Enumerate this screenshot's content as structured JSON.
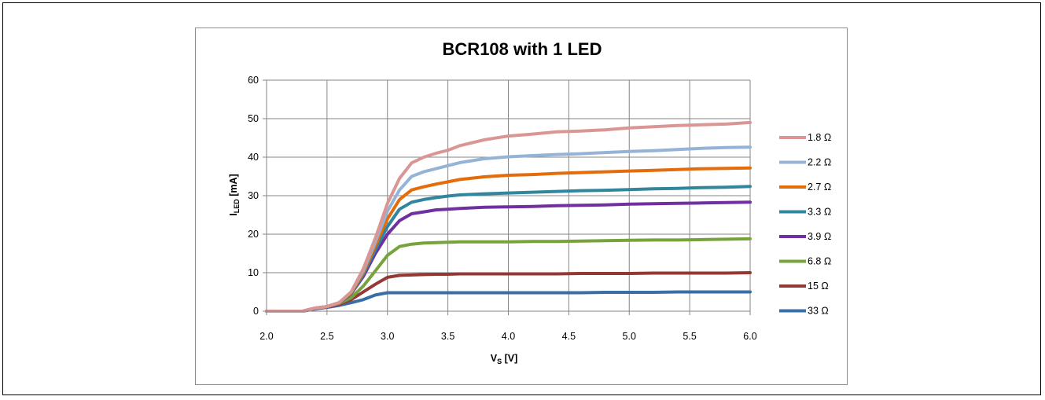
{
  "chart_data": {
    "type": "line",
    "title": "BCR108 with 1 LED",
    "ylabel_main": "I",
    "ylabel_sub": "LED",
    "ylabel_unit": " [mA]",
    "xlabel_main": "V",
    "xlabel_sub": "S",
    "xlabel_unit": " [V]",
    "xlim": [
      2.0,
      6.0
    ],
    "ylim": [
      0,
      60
    ],
    "x_ticks": [
      "2.0",
      "2.5",
      "3.0",
      "3.5",
      "4.0",
      "4.5",
      "5.0",
      "5.5",
      "6.0"
    ],
    "y_ticks": [
      "0",
      "10",
      "20",
      "30",
      "40",
      "50",
      "60"
    ],
    "grid": true,
    "legend_position": "right",
    "x": [
      2.0,
      2.3,
      2.4,
      2.5,
      2.6,
      2.7,
      2.8,
      2.9,
      3.0,
      3.1,
      3.2,
      3.3,
      3.4,
      3.5,
      3.6,
      3.8,
      4.0,
      4.2,
      4.4,
      4.6,
      4.8,
      5.0,
      5.2,
      5.4,
      5.6,
      5.8,
      6.0
    ],
    "series": [
      {
        "name": "1.8 Ω",
        "color": "#d99694",
        "values": [
          0,
          0,
          0.8,
          1.2,
          2.2,
          5,
          11,
          19,
          28,
          34.5,
          38.5,
          40,
          41,
          41.8,
          43,
          44.5,
          45.5,
          46,
          46.6,
          46.8,
          47.1,
          47.6,
          47.9,
          48.2,
          48.4,
          48.6,
          49
        ]
      },
      {
        "name": "2.2 Ω",
        "color": "#95b3d7",
        "values": [
          0,
          0,
          0.8,
          1.2,
          2.2,
          5,
          10.5,
          18,
          26,
          31.5,
          35,
          36.2,
          37,
          37.8,
          38.6,
          39.6,
          40.1,
          40.4,
          40.7,
          40.9,
          41.2,
          41.5,
          41.7,
          42,
          42.3,
          42.5,
          42.6
        ]
      },
      {
        "name": "2.7 Ω",
        "color": "#e46c0a",
        "values": [
          0,
          0,
          0.8,
          1.2,
          2.2,
          4.8,
          10,
          17,
          24,
          29,
          31.5,
          32.3,
          33,
          33.6,
          34.2,
          34.9,
          35.3,
          35.5,
          35.8,
          36,
          36.2,
          36.4,
          36.6,
          36.8,
          37,
          37.1,
          37.2
        ]
      },
      {
        "name": "3.3 Ω",
        "color": "#31859c",
        "values": [
          0,
          0,
          0.8,
          1.2,
          2.2,
          4.6,
          9.5,
          16,
          22,
          26.5,
          28.3,
          29,
          29.5,
          29.9,
          30.2,
          30.5,
          30.7,
          30.9,
          31.1,
          31.3,
          31.4,
          31.6,
          31.8,
          31.9,
          32.1,
          32.2,
          32.4
        ]
      },
      {
        "name": "3.9 Ω",
        "color": "#7030a0",
        "values": [
          0,
          0,
          0.8,
          1.2,
          2.1,
          4.5,
          9,
          15,
          20,
          23.5,
          25.3,
          25.8,
          26.3,
          26.5,
          26.7,
          27,
          27.1,
          27.2,
          27.4,
          27.5,
          27.6,
          27.8,
          27.9,
          28,
          28.1,
          28.2,
          28.3
        ]
      },
      {
        "name": "6.8 Ω",
        "color": "#77a33c",
        "values": [
          0,
          0,
          0.8,
          1.2,
          2,
          3.5,
          6.5,
          10.5,
          14.5,
          16.8,
          17.4,
          17.7,
          17.8,
          17.9,
          18,
          18,
          18,
          18.1,
          18.1,
          18.2,
          18.3,
          18.4,
          18.5,
          18.5,
          18.6,
          18.7,
          18.8
        ]
      },
      {
        "name": "15 Ω",
        "color": "#953735",
        "values": [
          0,
          0,
          0.7,
          1.1,
          1.8,
          3,
          5,
          7,
          8.8,
          9.3,
          9.4,
          9.5,
          9.6,
          9.6,
          9.7,
          9.7,
          9.7,
          9.7,
          9.7,
          9.8,
          9.8,
          9.8,
          9.9,
          9.9,
          9.9,
          9.9,
          10
        ]
      },
      {
        "name": "33 Ω",
        "color": "#3a6ea5",
        "values": [
          0,
          0,
          0.6,
          1,
          1.5,
          2.2,
          3,
          4.2,
          4.8,
          4.8,
          4.8,
          4.8,
          4.8,
          4.8,
          4.8,
          4.8,
          4.8,
          4.8,
          4.8,
          4.8,
          4.9,
          4.9,
          4.9,
          5,
          5,
          5,
          5
        ]
      }
    ]
  }
}
